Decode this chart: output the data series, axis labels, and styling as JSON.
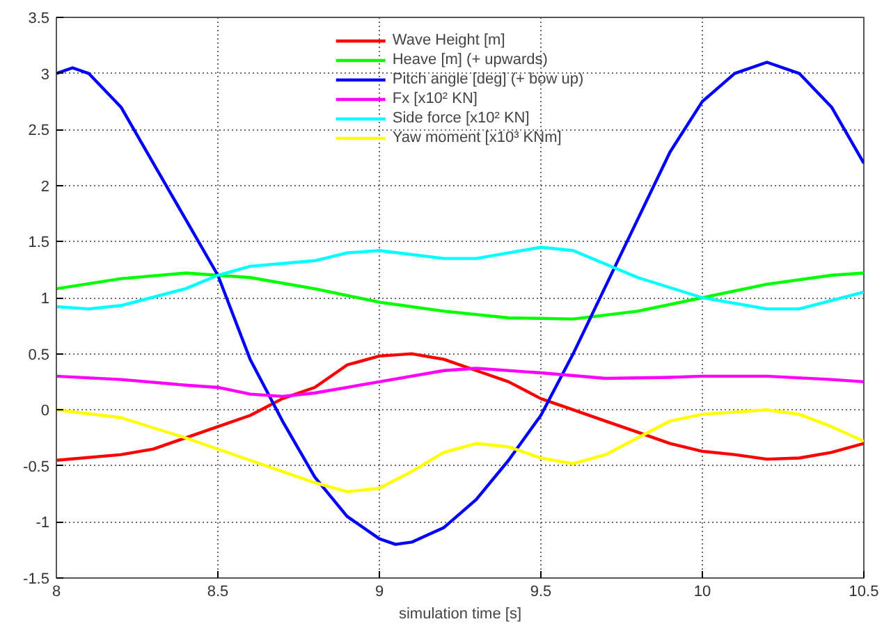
{
  "chart_data": {
    "type": "line",
    "xlabel": "simulation time [s]",
    "xlim": [
      8,
      10.5
    ],
    "ylim": [
      -1.5,
      3.5
    ],
    "xticks": [
      8,
      8.5,
      9,
      9.5,
      10,
      10.5
    ],
    "yticks": [
      -1.5,
      -1,
      -0.5,
      0,
      0.5,
      1,
      1.5,
      2,
      2.5,
      3,
      3.5
    ],
    "grid": true,
    "legend": "top",
    "marker": "none",
    "line_style": "solid",
    "series": [
      {
        "name": "Wave Height [m]",
        "color": "#ff0000",
        "x": [
          8,
          8.2,
          8.3,
          8.5,
          8.6,
          8.7,
          8.8,
          8.9,
          9.0,
          9.1,
          9.2,
          9.3,
          9.4,
          9.5,
          9.6,
          9.7,
          9.8,
          9.9,
          10.0,
          10.1,
          10.2,
          10.3,
          10.4,
          10.5
        ],
        "values": [
          -0.45,
          -0.4,
          -0.35,
          -0.15,
          -0.05,
          0.1,
          0.2,
          0.4,
          0.48,
          0.5,
          0.45,
          0.35,
          0.25,
          0.1,
          0.0,
          -0.1,
          -0.2,
          -0.3,
          -0.37,
          -0.4,
          -0.44,
          -0.43,
          -0.38,
          -0.3
        ]
      },
      {
        "name": "Heave [m] (+ upwards)",
        "color": "#00ff00",
        "x": [
          8,
          8.2,
          8.4,
          8.5,
          8.6,
          8.8,
          9.0,
          9.2,
          9.4,
          9.6,
          9.8,
          10.0,
          10.2,
          10.4,
          10.5
        ],
        "values": [
          1.08,
          1.17,
          1.22,
          1.2,
          1.18,
          1.08,
          0.96,
          0.88,
          0.82,
          0.81,
          0.88,
          1.0,
          1.12,
          1.2,
          1.22
        ]
      },
      {
        "name": "Pitch angle [deg] (+ bow up)",
        "color": "#0000ff",
        "x": [
          8,
          8.05,
          8.1,
          8.2,
          8.3,
          8.4,
          8.5,
          8.6,
          8.7,
          8.8,
          8.9,
          9.0,
          9.05,
          9.1,
          9.2,
          9.3,
          9.4,
          9.5,
          9.6,
          9.7,
          9.8,
          9.9,
          10.0,
          10.1,
          10.2,
          10.3,
          10.4,
          10.5
        ],
        "values": [
          3.0,
          3.05,
          3.0,
          2.7,
          2.2,
          1.7,
          1.2,
          0.45,
          -0.1,
          -0.6,
          -0.95,
          -1.15,
          -1.2,
          -1.18,
          -1.05,
          -0.8,
          -0.45,
          -0.05,
          0.5,
          1.1,
          1.7,
          2.3,
          2.75,
          3.0,
          3.1,
          3.0,
          2.7,
          2.2
        ]
      },
      {
        "name": "Fx [x10² KN]",
        "color": "#ff00ff",
        "x": [
          8,
          8.2,
          8.4,
          8.5,
          8.6,
          8.7,
          8.8,
          9.0,
          9.2,
          9.3,
          9.5,
          9.7,
          9.9,
          10.0,
          10.2,
          10.4,
          10.5
        ],
        "values": [
          0.3,
          0.27,
          0.22,
          0.2,
          0.14,
          0.12,
          0.15,
          0.25,
          0.35,
          0.37,
          0.33,
          0.28,
          0.29,
          0.3,
          0.3,
          0.27,
          0.25
        ]
      },
      {
        "name": "Side force [x10² KN]",
        "color": "#00ffff",
        "x": [
          8,
          8.1,
          8.2,
          8.4,
          8.5,
          8.6,
          8.8,
          8.9,
          9.0,
          9.2,
          9.3,
          9.5,
          9.6,
          9.8,
          10.0,
          10.2,
          10.3,
          10.5
        ],
        "values": [
          0.92,
          0.9,
          0.93,
          1.08,
          1.2,
          1.28,
          1.33,
          1.4,
          1.42,
          1.35,
          1.35,
          1.45,
          1.42,
          1.18,
          1.0,
          0.9,
          0.9,
          1.05
        ]
      },
      {
        "name": "Yaw moment [x10³ KNm]",
        "color": "#ffff00",
        "x": [
          8,
          8.2,
          8.4,
          8.6,
          8.7,
          8.8,
          8.9,
          9.0,
          9.1,
          9.2,
          9.3,
          9.4,
          9.5,
          9.6,
          9.7,
          9.8,
          9.9,
          10.0,
          10.2,
          10.3,
          10.4,
          10.5
        ],
        "values": [
          0.0,
          -0.07,
          -0.25,
          -0.45,
          -0.55,
          -0.65,
          -0.73,
          -0.7,
          -0.55,
          -0.38,
          -0.3,
          -0.33,
          -0.43,
          -0.48,
          -0.4,
          -0.25,
          -0.1,
          -0.04,
          0.0,
          -0.04,
          -0.15,
          -0.28
        ]
      }
    ]
  }
}
